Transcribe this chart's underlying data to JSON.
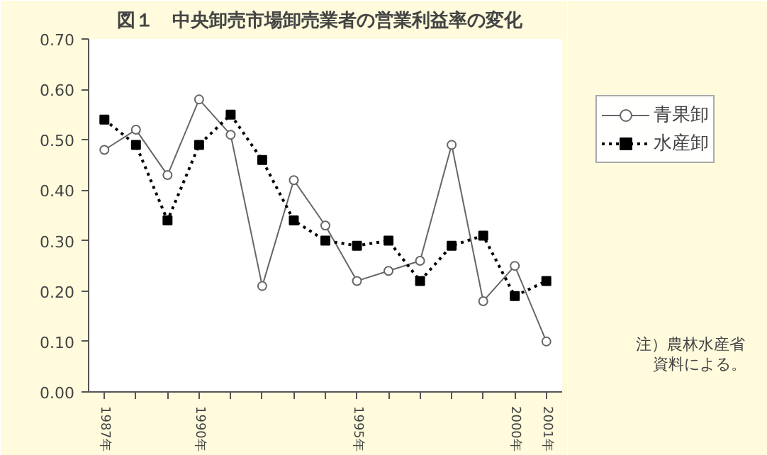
{
  "chart_data": {
    "type": "line",
    "title": "図１　中央卸売市場卸売業者の営業利益率の変化",
    "x": [
      1987,
      1988,
      1989,
      1990,
      1991,
      1992,
      1993,
      1994,
      1995,
      1996,
      1997,
      1998,
      1999,
      2000,
      2001
    ],
    "series": [
      {
        "name": "青果卸",
        "color": "#666666",
        "marker": "circle",
        "line_style": "solid",
        "values": [
          0.48,
          0.52,
          0.43,
          0.58,
          0.51,
          0.21,
          0.42,
          0.33,
          0.22,
          0.24,
          0.26,
          0.49,
          0.18,
          0.25,
          0.1
        ]
      },
      {
        "name": "水産卸",
        "color": "#000000",
        "marker": "square",
        "line_style": "dotted",
        "values": [
          0.54,
          0.49,
          0.34,
          0.49,
          0.55,
          0.46,
          0.34,
          0.3,
          0.29,
          0.3,
          0.22,
          0.29,
          0.31,
          0.19,
          0.22
        ]
      }
    ],
    "xlim": [
      1986.5,
      2001.5
    ],
    "xticks": [
      {
        "value": 1987,
        "label": "1987年"
      },
      {
        "value": 1988,
        "label": null
      },
      {
        "value": 1989,
        "label": null
      },
      {
        "value": 1990,
        "label": "1990年"
      },
      {
        "value": 1991,
        "label": null
      },
      {
        "value": 1992,
        "label": null
      },
      {
        "value": 1993,
        "label": null
      },
      {
        "value": 1994,
        "label": null
      },
      {
        "value": 1995,
        "label": "1995年"
      },
      {
        "value": 1996,
        "label": null
      },
      {
        "value": 1997,
        "label": null
      },
      {
        "value": 1998,
        "label": null
      },
      {
        "value": 1999,
        "label": null
      },
      {
        "value": 2000,
        "label": "2000年"
      },
      {
        "value": 2001,
        "label": "2001年"
      }
    ],
    "ylim": [
      0,
      0.7
    ],
    "yticks": [
      {
        "value": 0,
        "label": "0.00"
      },
      {
        "value": 0.1,
        "label": "0.10"
      },
      {
        "value": 0.2,
        "label": "0.20"
      },
      {
        "value": 0.3,
        "label": "0.30"
      },
      {
        "value": 0.4,
        "label": "0.40"
      },
      {
        "value": 0.5,
        "label": "0.50"
      },
      {
        "value": 0.6,
        "label": "0.60"
      },
      {
        "value": 0.7,
        "label": "0.70"
      }
    ],
    "grid": false,
    "legend": "top right",
    "annotations": [
      "注）農林水産省",
      "資料による。"
    ]
  }
}
